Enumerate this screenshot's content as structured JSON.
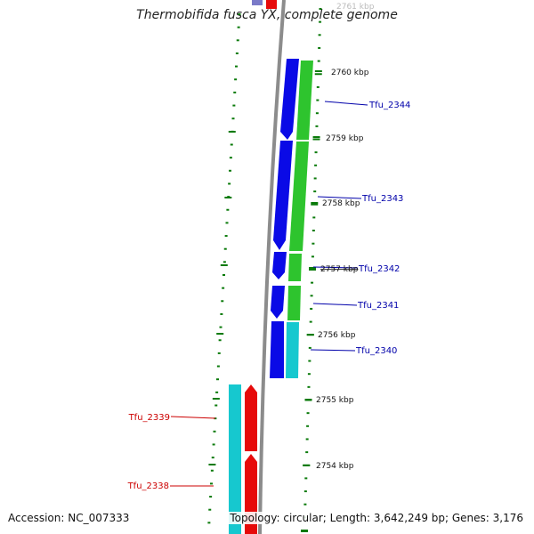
{
  "title": "Thermobifida fusca YX, complete genome",
  "footer": {
    "accession": "Accession: NC_007333",
    "summary": "Topology: circular; Length: 3,642,249 bp; Genes: 3,176"
  },
  "kbp_labels": [
    {
      "name": "tick-2761kbp",
      "text": "2761 kbp",
      "muted": true
    },
    {
      "name": "tick-2760kbp",
      "text": "2760 kbp"
    },
    {
      "name": "tick-2759kbp",
      "text": "2759 kbp"
    },
    {
      "name": "tick-2758kbp",
      "text": "2758 kbp"
    },
    {
      "name": "tick-2757kbp",
      "text": "2757 kbp",
      "struck": true
    },
    {
      "name": "tick-2756kbp",
      "text": "2756 kbp"
    },
    {
      "name": "tick-2755kbp",
      "text": "2755 kbp"
    },
    {
      "name": "tick-2754kbp",
      "text": "2754 kbp"
    }
  ],
  "genes": [
    {
      "name": "gene-label-tfu-2344",
      "text": "Tfu_2344",
      "strand": "forward"
    },
    {
      "name": "gene-label-tfu-2343",
      "text": "Tfu_2343",
      "strand": "forward"
    },
    {
      "name": "gene-label-tfu-2342",
      "text": "Tfu_2342",
      "strand": "forward"
    },
    {
      "name": "gene-label-tfu-2341",
      "text": "Tfu_2341",
      "strand": "forward"
    },
    {
      "name": "gene-label-tfu-2340",
      "text": "Tfu_2340",
      "strand": "forward"
    },
    {
      "name": "gene-label-tfu-2339",
      "text": "Tfu_2339",
      "strand": "reverse"
    },
    {
      "name": "gene-label-tfu-2338",
      "text": "Tfu_2338",
      "strand": "reverse"
    }
  ],
  "colors": {
    "forward_cds": "#0a0ae6",
    "reverse_cds": "#e60a0a",
    "gene_feature": "#2ec42e",
    "rna_feature": "#16c8cf",
    "backbone": "#8c8c8c",
    "tick": "#0a7a0a",
    "forward_label": "#0000aa",
    "reverse_label": "#cc0000"
  }
}
